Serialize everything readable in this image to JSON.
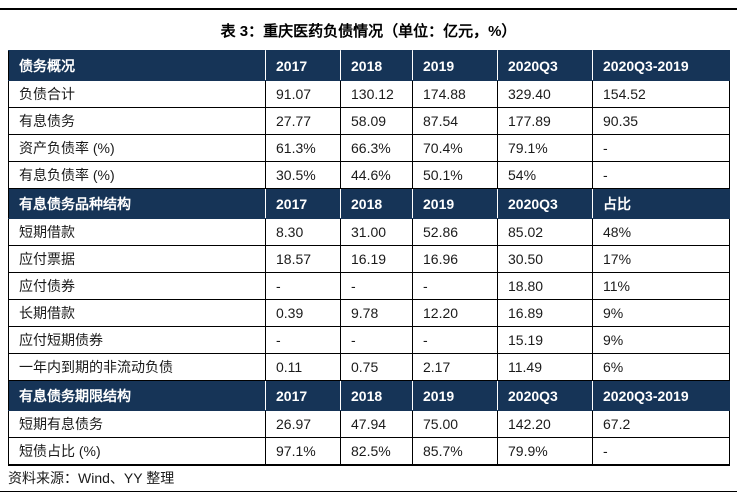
{
  "page": {
    "title": "表 3：重庆医药负债情况（单位：亿元，%）",
    "source": "资料来源：Wind、YY 整理"
  },
  "colors": {
    "header_bg": "#163457",
    "grid_line": "#000000",
    "header_text": "#ffffff"
  },
  "table": {
    "sections": [
      {
        "header": [
          "债务概况",
          "2017",
          "2018",
          "2019",
          "2020Q3",
          "2020Q3-2019"
        ],
        "rows": [
          [
            "负债合计",
            "91.07",
            "130.12",
            "174.88",
            "329.40",
            "154.52"
          ],
          [
            "有息债务",
            "27.77",
            "58.09",
            "87.54",
            "177.89",
            "90.35"
          ],
          [
            "资产负债率 (%)",
            "61.3%",
            "66.3%",
            "70.4%",
            "79.1%",
            "-"
          ],
          [
            "有息负债率 (%)",
            "30.5%",
            "44.6%",
            "50.1%",
            "54%",
            "-"
          ]
        ]
      },
      {
        "header": [
          "有息债务品种结构",
          "2017",
          "2018",
          "2019",
          "2020Q3",
          "占比"
        ],
        "rows": [
          [
            "短期借款",
            "8.30",
            "31.00",
            "52.86",
            "85.02",
            "48%"
          ],
          [
            "应付票据",
            "18.57",
            "16.19",
            "16.96",
            "30.50",
            "17%"
          ],
          [
            "应付债券",
            "-",
            "-",
            "-",
            "18.80",
            "11%"
          ],
          [
            "长期借款",
            "0.39",
            "9.78",
            "12.20",
            "16.89",
            "9%"
          ],
          [
            "应付短期债券",
            "-",
            "-",
            "-",
            "15.19",
            "9%"
          ],
          [
            "一年内到期的非流动负债",
            "0.11",
            "0.75",
            "2.17",
            "11.49",
            "6%"
          ]
        ]
      },
      {
        "header": [
          "有息债务期限结构",
          "2017",
          "2018",
          "2019",
          "2020Q3",
          "2020Q3-2019"
        ],
        "rows": [
          [
            "短期有息债务",
            "26.97",
            "47.94",
            "75.00",
            "142.20",
            "67.2"
          ],
          [
            "短债占比 (%)",
            "97.1%",
            "82.5%",
            "85.7%",
            "79.9%",
            "-"
          ]
        ]
      }
    ]
  }
}
